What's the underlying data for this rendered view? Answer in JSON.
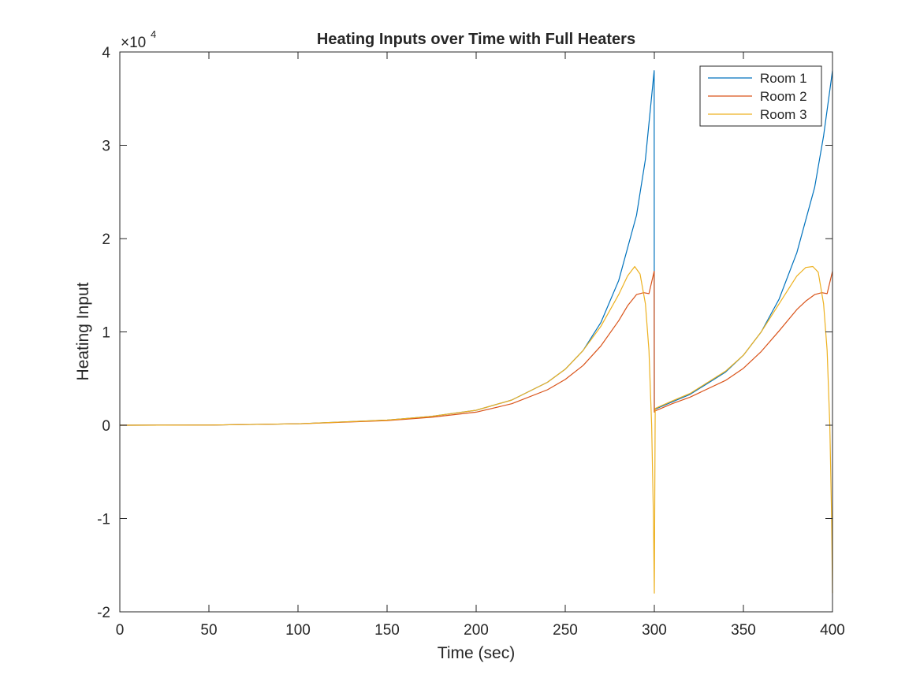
{
  "chart_data": {
    "type": "line",
    "title": "Heating Inputs over Time with Full Heaters",
    "xlabel": "Time (sec)",
    "ylabel": "Heating Input",
    "xlim": [
      0,
      400
    ],
    "ylim": [
      -20000,
      40000
    ],
    "x_ticks": [
      0,
      50,
      100,
      150,
      200,
      250,
      300,
      350,
      400
    ],
    "x_tick_labels": [
      "0",
      "50",
      "100",
      "150",
      "200",
      "250",
      "300",
      "350",
      "400"
    ],
    "y_ticks": [
      -20000,
      -10000,
      0,
      10000,
      20000,
      30000,
      40000
    ],
    "y_tick_labels": [
      "-2",
      "-1",
      "0",
      "1",
      "2",
      "3",
      "4"
    ],
    "y_exponent_label": {
      "mantissa": "×10",
      "power": "4"
    },
    "grid": false,
    "legend_position": "top-right",
    "series": [
      {
        "name": "Room 1",
        "color": "#0072BD",
        "x": [
          0,
          50,
          100,
          150,
          175,
          200,
          220,
          240,
          250,
          260,
          270,
          280,
          290,
          295,
          299.9,
          300,
          300.1,
          310,
          320,
          340,
          350,
          360,
          370,
          380,
          390,
          395,
          400
        ],
        "y": [
          0,
          20,
          150,
          550,
          950,
          1600,
          2700,
          4600,
          6000,
          8000,
          11000,
          15500,
          22500,
          28500,
          38000,
          1500,
          1700,
          2500,
          3300,
          5700,
          7500,
          10000,
          13500,
          18500,
          25500,
          31000,
          38000
        ]
      },
      {
        "name": "Room 2",
        "color": "#D95319",
        "x": [
          0,
          50,
          100,
          150,
          175,
          200,
          220,
          240,
          250,
          260,
          270,
          280,
          285,
          290,
          294,
          297,
          299.9,
          300,
          300.1,
          310,
          320,
          340,
          350,
          360,
          370,
          380,
          385,
          390,
          394,
          397,
          400
        ],
        "y": [
          0,
          20,
          150,
          500,
          850,
          1400,
          2300,
          3800,
          4900,
          6400,
          8500,
          11200,
          12800,
          14000,
          14200,
          14100,
          16500,
          1400,
          1500,
          2300,
          3000,
          4800,
          6100,
          7900,
          10100,
          12400,
          13300,
          14000,
          14200,
          14100,
          16500
        ]
      },
      {
        "name": "Room 3",
        "color": "#EDB120",
        "x": [
          0,
          50,
          100,
          150,
          175,
          200,
          220,
          240,
          250,
          260,
          270,
          280,
          285,
          289,
          292,
          295,
          297,
          298.5,
          299.5,
          300,
          300.5,
          310,
          320,
          340,
          350,
          360,
          370,
          380,
          385,
          389,
          392,
          395,
          397,
          398.5,
          399.5,
          400
        ],
        "y": [
          0,
          20,
          150,
          550,
          950,
          1600,
          2700,
          4600,
          6000,
          8000,
          10600,
          14000,
          16000,
          17000,
          16200,
          13000,
          8000,
          0,
          -10000,
          -18000,
          1800,
          2600,
          3400,
          5800,
          7500,
          10000,
          13000,
          16000,
          16900,
          17000,
          16400,
          13000,
          8000,
          0,
          -10000,
          -18000
        ]
      }
    ]
  }
}
